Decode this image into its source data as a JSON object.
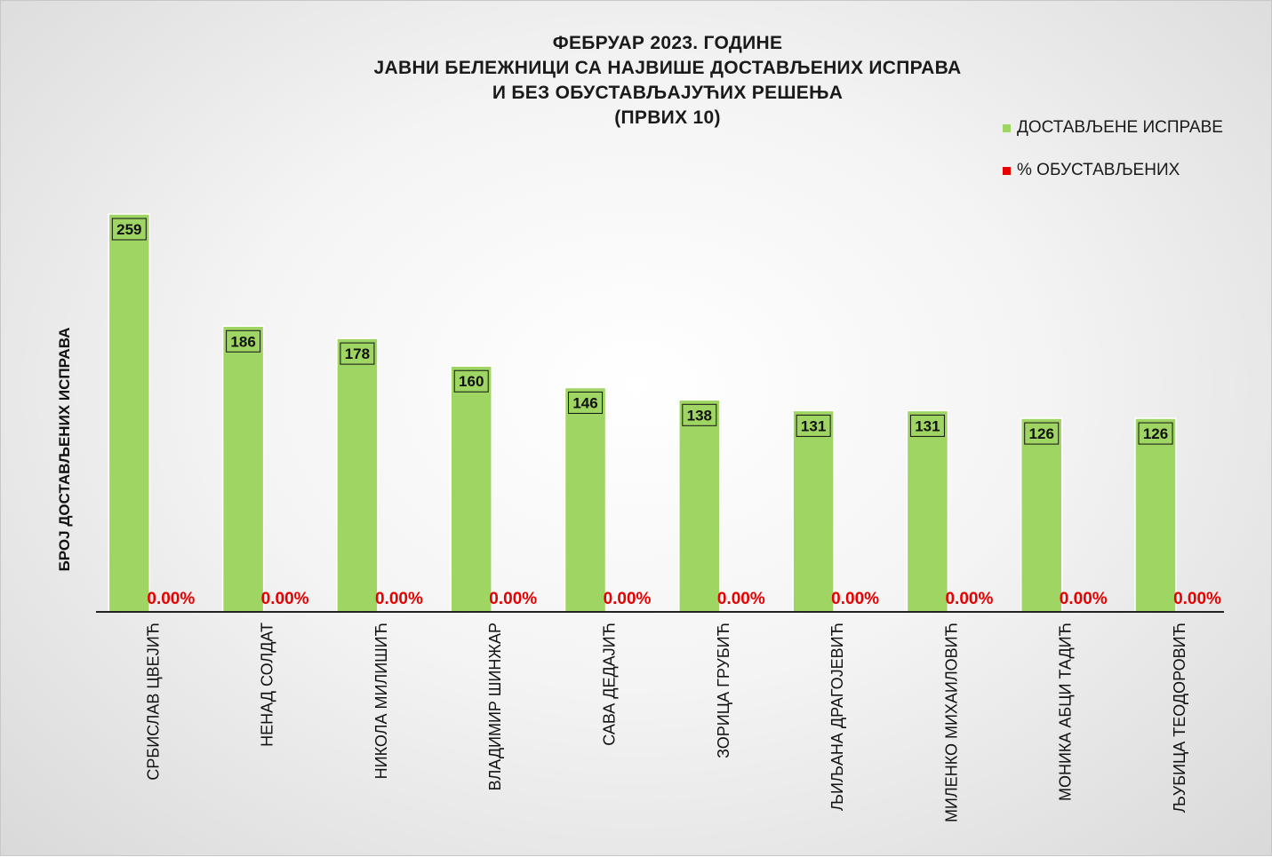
{
  "chart_data": {
    "type": "bar",
    "title_lines": [
      "ФЕБРУАР 2023. ГОДИНЕ",
      "ЈАВНИ БЕЛЕЖНИЦИ СА НАЈВИШЕ ДОСТАВЉЕНИХ ИСПРАВА",
      "И БЕЗ ОБУСТАВЉАЈУЋИХ РЕШЕЊА",
      "(ПРВИХ 10)"
    ],
    "ylabel": "БРОЈ ДОСТАВЉЕНИХ ИСПРАВА",
    "xlabel": "",
    "legend_position": "top-right",
    "grid": false,
    "categories": [
      "СРБИСЛАВ ЦВЕЈИЋ",
      "НЕНАД СОЛДАТ",
      "НИКОЛА МИЛИШИЋ",
      "ВЛАДИМИР ШИНЖАР",
      "САВА ДЕДАЈИЋ",
      "ЗОРИЦА ГРУБИЋ",
      "ЉИЉАНА ДРАГОЈЕВИЋ",
      "МИЛЕНКО МИХАИЛОВИЋ",
      "МОНИКА АБЦИ ТАДИЋ",
      "ЉУБИЦА ТЕОДОРОВИЋ"
    ],
    "series": [
      {
        "name": "ДОСТАВЉЕНЕ ИСПРАВЕ",
        "color": "#9fd563",
        "values": [
          259,
          186,
          178,
          160,
          146,
          138,
          131,
          131,
          126,
          126
        ],
        "labels": [
          "259",
          "186",
          "178",
          "160",
          "146",
          "138",
          "131",
          "131",
          "126",
          "126"
        ]
      },
      {
        "name": "% ОБУСТАВЉЕНИХ",
        "color": "#e60000",
        "values": [
          0,
          0,
          0,
          0,
          0,
          0,
          0,
          0,
          0,
          0
        ],
        "labels": [
          "0.00%",
          "0.00%",
          "0.00%",
          "0.00%",
          "0.00%",
          "0.00%",
          "0.00%",
          "0.00%",
          "0.00%",
          "0.00%"
        ]
      }
    ],
    "ylim": [
      0,
      259
    ]
  }
}
